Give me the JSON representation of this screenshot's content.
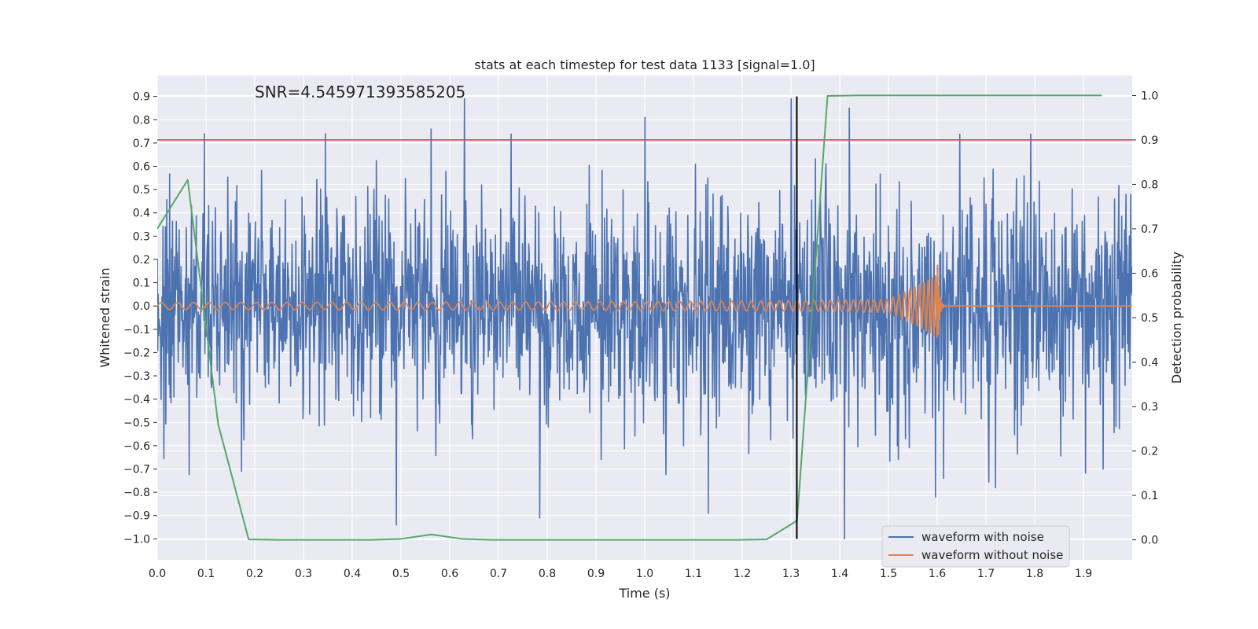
{
  "chart_data": {
    "type": "line",
    "title": "stats at each timestep for test data 1133 [signal=1.0]",
    "annotation": "SNR=4.545971393585205",
    "xlabel": "Time (s)",
    "ylabel_left": "Whitened strain",
    "ylabel_right": "Detection probability",
    "xlim": [
      0.0,
      2.0
    ],
    "ylim_left": [
      -1.09,
      0.99
    ],
    "ylim_right": [
      -0.045,
      1.045
    ],
    "x_ticks": [
      "0.0",
      "0.1",
      "0.2",
      "0.3",
      "0.4",
      "0.5",
      "0.6",
      "0.7",
      "0.8",
      "0.9",
      "1.0",
      "1.1",
      "1.2",
      "1.3",
      "1.4",
      "1.5",
      "1.6",
      "1.7",
      "1.8",
      "1.9"
    ],
    "y_ticks_left": [
      "-1.0",
      "-0.9",
      "-0.8",
      "-0.7",
      "-0.6",
      "-0.5",
      "-0.4",
      "-0.3",
      "-0.2",
      "-0.1",
      "0.0",
      "0.1",
      "0.2",
      "0.3",
      "0.4",
      "0.5",
      "0.6",
      "0.7",
      "0.8",
      "0.9"
    ],
    "y_ticks_right": [
      "0.0",
      "0.1",
      "0.2",
      "0.3",
      "0.4",
      "0.5",
      "0.6",
      "0.7",
      "0.8",
      "0.9",
      "1.0"
    ],
    "grid": true,
    "legend_position": "lower-right",
    "threshold": {
      "value": 0.9,
      "axis": "right",
      "color": "#c44e52"
    },
    "detection_time": {
      "x": 1.312,
      "y_range": [
        -1.0,
        0.9
      ],
      "color": "#000000"
    },
    "series": [
      {
        "name": "waveform with noise",
        "axis": "left",
        "color": "#4c72b0",
        "x_range": [
          0.0,
          2.0
        ],
        "samples": 2048,
        "amplitude_range": [
          -1.0,
          0.9
        ],
        "peaks": [
          [
            0.097,
            0.74
          ],
          [
            0.345,
            0.74
          ],
          [
            0.562,
            0.76
          ],
          [
            0.63,
            0.89
          ],
          [
            1.0,
            0.81
          ],
          [
            1.3,
            0.89
          ],
          [
            1.42,
            0.85
          ],
          [
            0.49,
            -0.94
          ],
          [
            0.785,
            -0.91
          ],
          [
            1.41,
            -1.0
          ],
          [
            1.13,
            -0.89
          ],
          [
            1.72,
            -0.78
          ],
          [
            1.94,
            -0.7
          ]
        ]
      },
      {
        "name": "waveform without noise",
        "axis": "left",
        "color": "#dd8452",
        "x_range": [
          0.0,
          2.0
        ],
        "amplitude_start": 0.015,
        "amplitude_peak": 0.25,
        "merger_time": 1.6,
        "ringdown_end": 1.615,
        "post_merger_level": 0.0
      },
      {
        "name": "",
        "axis": "right",
        "color": "#55a868",
        "x": [
          0.0,
          0.0625,
          0.125,
          0.1875,
          0.25,
          0.3125,
          0.375,
          0.4375,
          0.5,
          0.5625,
          0.625,
          0.6875,
          0.75,
          0.8125,
          0.875,
          0.9375,
          1.0,
          1.0625,
          1.125,
          1.1875,
          1.25,
          1.3125,
          1.375,
          1.4375,
          1.5,
          1.5625,
          1.625,
          1.6875,
          1.75,
          1.8125,
          1.875,
          1.9375
        ],
        "y": [
          0.7,
          0.81,
          0.26,
          0.001,
          0.0,
          0.0,
          0.0,
          0.0,
          0.002,
          0.012,
          0.002,
          0.0,
          0.0,
          0.0,
          0.0,
          0.0,
          0.0,
          0.0,
          0.0,
          0.0,
          0.001,
          0.043,
          0.999,
          1.0,
          1.0,
          1.0,
          1.0,
          1.0,
          1.0,
          1.0,
          1.0,
          1.0
        ]
      }
    ]
  }
}
